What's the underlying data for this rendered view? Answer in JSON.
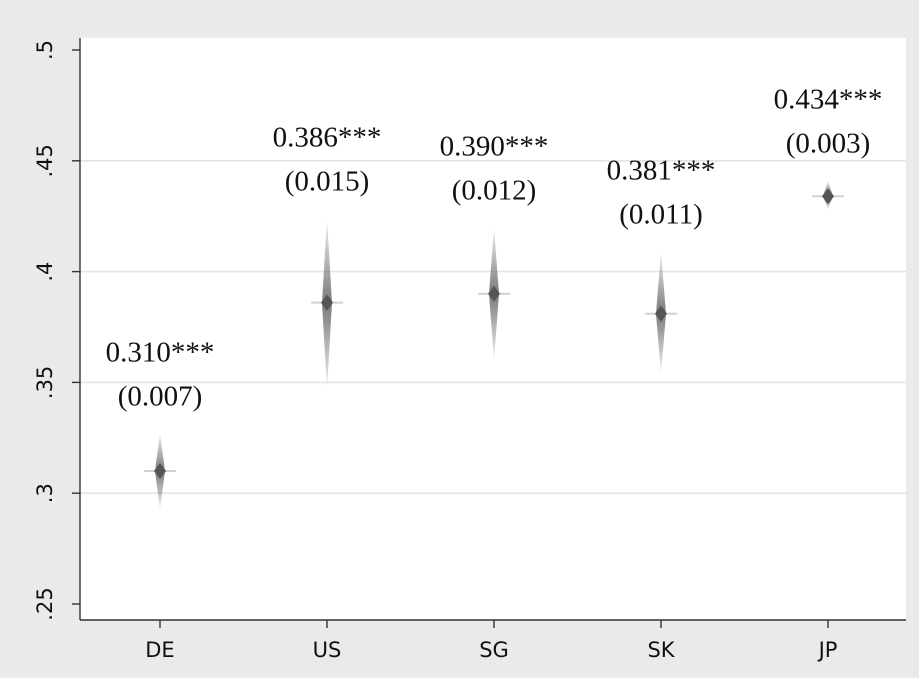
{
  "chart_data": {
    "type": "scatter",
    "title": "",
    "xlabel": "",
    "ylabel": "",
    "categories": [
      "DE",
      "US",
      "SG",
      "SK",
      "JP"
    ],
    "series": [
      {
        "values": [
          0.31,
          0.386,
          0.39,
          0.381,
          0.434
        ],
        "ci_low": [
          0.293,
          0.347,
          0.36,
          0.354,
          0.428
        ],
        "ci_high": [
          0.327,
          0.424,
          0.42,
          0.409,
          0.441
        ],
        "labels": [
          "0.310***",
          "0.386***",
          "0.390***",
          "0.381***",
          "0.434***"
        ],
        "se_labels": [
          "(0.007)",
          "(0.015)",
          "(0.012)",
          "(0.011)",
          "(0.003)"
        ]
      }
    ],
    "ylim": [
      0.25,
      0.5
    ],
    "yticks": [
      0.25,
      0.3,
      0.35,
      0.4,
      0.45,
      0.5
    ],
    "ytick_labels": [
      ".25",
      ".3",
      ".35",
      ".4",
      ".45",
      ".5"
    ],
    "grid": true,
    "legend": "none",
    "colors": {
      "background": "#eaeaea",
      "plot_area": "#ffffff",
      "gridline": "#e4e4e4",
      "marker": "#555555",
      "interval": "#7a7a7a",
      "axis": "#333333",
      "text": "#111111"
    }
  }
}
